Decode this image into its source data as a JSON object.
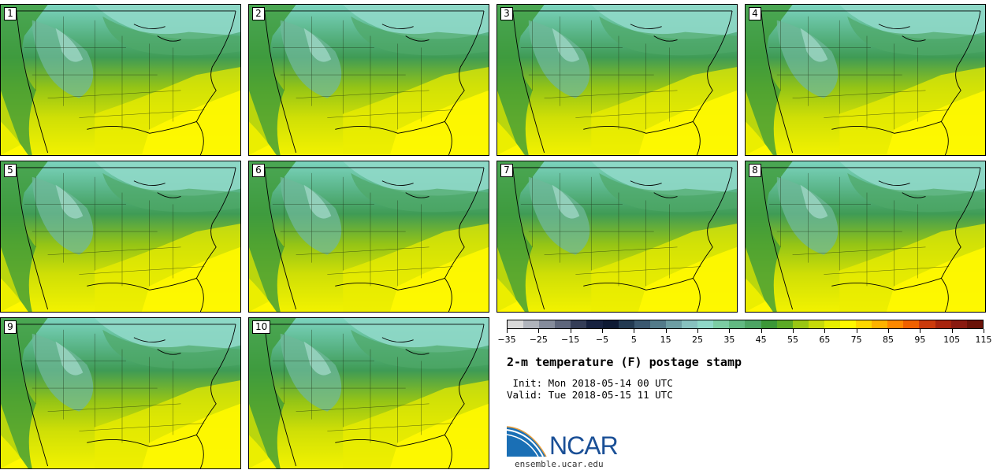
{
  "panels": [
    {
      "label": "1"
    },
    {
      "label": "2"
    },
    {
      "label": "3"
    },
    {
      "label": "4"
    },
    {
      "label": "5"
    },
    {
      "label": "6"
    },
    {
      "label": "7"
    },
    {
      "label": "8"
    },
    {
      "label": "9"
    },
    {
      "label": "10"
    }
  ],
  "colorbar": {
    "colors": [
      "#d9d9d9",
      "#b0b4bc",
      "#858c9c",
      "#5e667c",
      "#353e58",
      "#172240",
      "#0e1a34",
      "#233a52",
      "#3b5870",
      "#537b8a",
      "#6d9ea4",
      "#87c1bf",
      "#8fd8c8",
      "#7ccda3",
      "#62b982",
      "#4da564",
      "#3c9838",
      "#5cab26",
      "#99c714",
      "#c6da0a",
      "#e7ee00",
      "#fff800",
      "#ffd700",
      "#ffb200",
      "#ff8800",
      "#f06000",
      "#cc3a0c",
      "#a8240e",
      "#8a1a10",
      "#6a1208"
    ],
    "tick_labels": [
      "−35",
      "−25",
      "−15",
      "−5",
      "5",
      "15",
      "25",
      "35",
      "45",
      "55",
      "65",
      "75",
      "85",
      "95",
      "105",
      "115"
    ]
  },
  "title": "2-m temperature (F) postage stamp",
  "init_text": " Init: Mon 2018-05-14 00 UTC",
  "valid_text": "Valid: Tue 2018-05-15 11 UTC",
  "logo_text": "NCAR",
  "url_text": "ensemble.ucar.edu"
}
